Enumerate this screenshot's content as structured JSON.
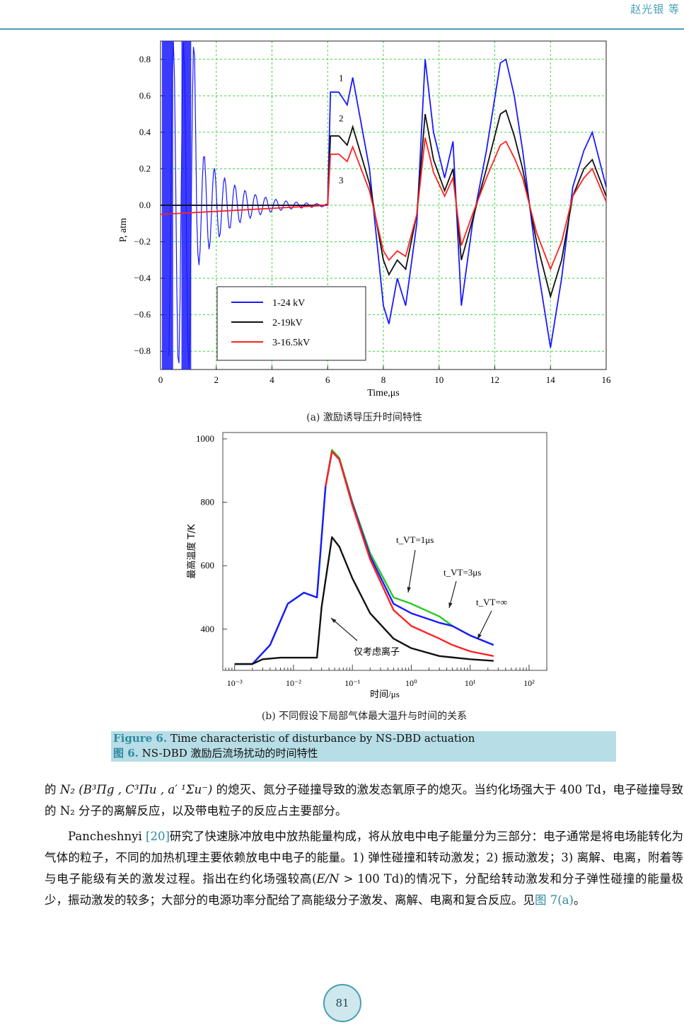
{
  "header": {
    "authors": "赵光银 等"
  },
  "figure_a": {
    "sublabel": "(a)  激励诱导压升时间特性",
    "chart_data": {
      "type": "line",
      "xlabel": "Time,μs",
      "ylabel": "P, atm",
      "xlim": [
        0,
        16
      ],
      "ylim": [
        -0.9,
        0.9
      ],
      "x_ticks": [
        "0",
        "2",
        "4",
        "6",
        "8",
        "10",
        "12",
        "14",
        "16"
      ],
      "y_ticks": [
        "0.8",
        "0.6",
        "0.4",
        "0.2",
        "0.0",
        "−0.2",
        "−0.4",
        "−0.6",
        "−0.8"
      ],
      "grid": true,
      "legend_position": "bottom-left",
      "curve_labels": [
        "1",
        "2",
        "3"
      ],
      "series": [
        {
          "name": "1-24 kV",
          "color": "#1a1aff",
          "x": [
            0,
            1.5,
            3,
            5,
            6,
            6.1,
            6.4,
            6.7,
            6.9,
            7.5,
            8,
            8.2,
            8.5,
            8.8,
            9.2,
            9.5,
            9.8,
            10.2,
            10.5,
            10.8,
            11.2,
            11.7,
            12.2,
            12.4,
            12.7,
            13,
            13.5,
            14,
            14.4,
            14.8,
            15.2,
            15.5,
            16
          ],
          "y": [
            0,
            0,
            0,
            0,
            0,
            0.62,
            0.62,
            0.55,
            0.7,
            0.2,
            -0.55,
            -0.65,
            -0.4,
            -0.55,
            -0.1,
            0.8,
            0.4,
            0.15,
            0.35,
            -0.55,
            -0.1,
            0.3,
            0.78,
            0.8,
            0.6,
            0.3,
            -0.3,
            -0.78,
            -0.4,
            0.1,
            0.3,
            0.4,
            0.1
          ]
        },
        {
          "name": "2-19kV",
          "color": "#111111",
          "x": [
            0,
            6,
            6.1,
            6.4,
            6.7,
            6.9,
            7.5,
            8,
            8.2,
            8.5,
            8.8,
            9.2,
            9.5,
            9.8,
            10.2,
            10.5,
            10.8,
            11.2,
            11.7,
            12.2,
            12.4,
            12.7,
            13,
            13.5,
            14,
            14.4,
            14.8,
            15.2,
            15.5,
            16
          ],
          "y": [
            0,
            0,
            0.38,
            0.38,
            0.33,
            0.43,
            0.12,
            -0.3,
            -0.38,
            -0.3,
            -0.35,
            -0.05,
            0.5,
            0.25,
            0.08,
            0.2,
            -0.3,
            -0.08,
            0.2,
            0.5,
            0.52,
            0.38,
            0.2,
            -0.2,
            -0.5,
            -0.3,
            0.05,
            0.2,
            0.25,
            0.05
          ]
        },
        {
          "name": "3-16.5kV",
          "color": "#ff2222",
          "x": [
            0,
            6,
            6.1,
            6.4,
            6.7,
            6.9,
            7.5,
            8,
            8.2,
            8.5,
            8.8,
            9.2,
            9.5,
            9.8,
            10.2,
            10.5,
            10.8,
            11.2,
            11.7,
            12.2,
            12.4,
            12.7,
            13,
            13.5,
            14,
            14.4,
            14.8,
            15.2,
            15.5,
            16
          ],
          "y": [
            -0.05,
            0,
            0.28,
            0.28,
            0.24,
            0.32,
            0.08,
            -0.25,
            -0.3,
            -0.25,
            -0.28,
            -0.05,
            0.37,
            0.18,
            0.05,
            0.15,
            -0.22,
            -0.05,
            0.15,
            0.33,
            0.35,
            0.26,
            0.15,
            -0.15,
            -0.35,
            -0.2,
            0.05,
            0.15,
            0.2,
            0.02
          ]
        }
      ]
    }
  },
  "figure_b": {
    "sublabel": "(b)  不同假设下局部气体最大温升与时间的关系",
    "chart_data": {
      "type": "line",
      "xlabel": "时间/μs",
      "ylabel": "最高温度  T/K",
      "x_scale": "log",
      "xlim": [
        0.00063,
        200
      ],
      "ylim": [
        270,
        1020
      ],
      "x_ticks": [
        "10⁻³",
        "10⁻²",
        "10⁻¹",
        "10⁰",
        "10¹",
        "10²"
      ],
      "y_ticks": [
        "1000",
        "800",
        "600",
        "400"
      ],
      "annotations": [
        "t_VT=1μs",
        "t_VT=3μs",
        "t_VT=∞",
        "仅考虑离子"
      ],
      "series": [
        {
          "name": "t_VT=1μs",
          "color": "#22cc22",
          "x": [
            0.001,
            0.002,
            0.004,
            0.008,
            0.015,
            0.025,
            0.035,
            0.045,
            0.06,
            0.1,
            0.2,
            0.5,
            1,
            3,
            5,
            10,
            25
          ],
          "y": [
            290,
            290,
            350,
            480,
            515,
            500,
            850,
            965,
            940,
            800,
            640,
            500,
            480,
            440,
            410,
            380,
            350
          ]
        },
        {
          "name": "t_VT=3μs",
          "color": "#1a1aff",
          "x": [
            0.001,
            0.002,
            0.004,
            0.008,
            0.015,
            0.025,
            0.035,
            0.045,
            0.06,
            0.1,
            0.2,
            0.5,
            1,
            3,
            5,
            10,
            25
          ],
          "y": [
            290,
            290,
            350,
            480,
            515,
            500,
            850,
            960,
            935,
            795,
            630,
            480,
            450,
            420,
            410,
            380,
            350
          ]
        },
        {
          "name": "t_VT=∞",
          "color": "#ff2222",
          "x": [
            0.035,
            0.045,
            0.06,
            0.1,
            0.2,
            0.5,
            1,
            3,
            5,
            10,
            25
          ],
          "y": [
            850,
            960,
            935,
            790,
            620,
            460,
            410,
            370,
            350,
            330,
            315
          ]
        },
        {
          "name": "仅考虑离子",
          "color": "#111111",
          "x": [
            0.001,
            0.002,
            0.003,
            0.006,
            0.01,
            0.025,
            0.03,
            0.045,
            0.06,
            0.1,
            0.2,
            0.5,
            1,
            3,
            10,
            25
          ],
          "y": [
            290,
            290,
            305,
            310,
            310,
            310,
            470,
            690,
            660,
            560,
            450,
            370,
            340,
            315,
            305,
            300
          ]
        }
      ]
    }
  },
  "caption": {
    "en_prefix": "Figure 6.",
    "en_text": " Time characteristic of disturbance by NS-DBD actuation",
    "zh_prefix": "图 6.",
    "zh_text": " NS-DBD 激励后流场扰动的时间特性"
  },
  "body": {
    "p1_a": "的 ",
    "p1_formula": "N₂ (B³Πg , C³Πu , a′ ¹Σu⁻)",
    "p1_b": " 的熄灭、氮分子碰撞导致的激发态氧原子的熄灭。当约化场强大于 400 Td，电子碰撞导致的 N₂ 分子的离解反应，以及带电粒子的反应占主要部分。",
    "p2_a": "Pancheshnyi ",
    "p2_ref": "[20]",
    "p2_b": "研究了快速脉冲放电中放热能量构成，将从放电中电子能量分为三部分：电子通常是将电场能转化为气体的粒子，不同的加热机理主要依赖放电中电子的能量。1) 弹性碰撞和转动激发；2) 振动激发；3) 离解、电离，附着等与电子能级有关的激发过程。指出在约化场强较高(",
    "p2_en": "E/N",
    "p2_c": " > 100 Td)的情况下，分配给转动激发和分子弹性碰撞的能量极少，振动激发的较多；大部分的电源功率分配给了高能级分子激发、离解、电离和复合反应。见",
    "p2_ref2": "图 7(a)",
    "p2_d": "。"
  },
  "page_number": "81"
}
